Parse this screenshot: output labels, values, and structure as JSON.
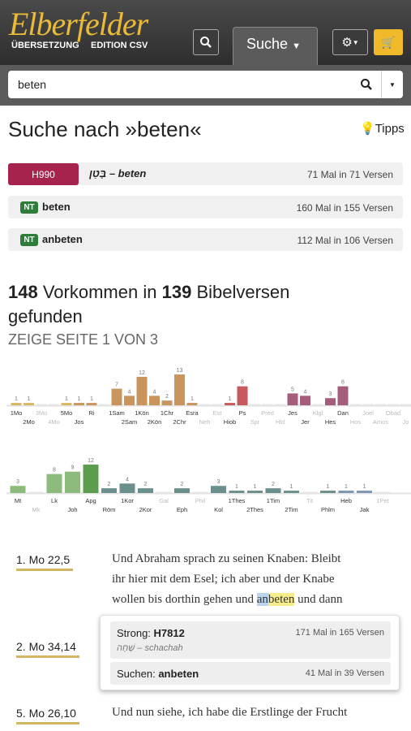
{
  "header": {
    "logo": "Elberfelder",
    "sub1": "ÜBERSETZUNG",
    "sub2": "EDITION CSV",
    "tab": "Suche"
  },
  "search": {
    "query": "beten"
  },
  "heading": {
    "title": "Suche nach »beten«",
    "tips": "Tipps"
  },
  "strongs": [
    {
      "badge": "H990",
      "word": "בָּטַן – beten",
      "count": "71 Mal in 71 Versen"
    },
    {
      "badge": "NT",
      "word": "beten",
      "count": "160 Mal in 155 Versen"
    },
    {
      "badge": "NT",
      "word": "anbeten",
      "count": "112 Mal in 106 Versen"
    }
  ],
  "summary": {
    "occurrences": 148,
    "mid": "Vorkommen in",
    "verses": 139,
    "end": "Bibelversen",
    "end2": "gefunden",
    "page": "ZEIGE SEITE 1 VON 3"
  },
  "chart_data": [
    {
      "type": "bar",
      "ylim": [
        0,
        13
      ],
      "categories": [
        "1Mo",
        "2Mo",
        "3Mo",
        "4Mo",
        "5Mo",
        "Jos",
        "Ri",
        null,
        "1Sam",
        "2Sam",
        "1Kön",
        "2Kön",
        "1Chr",
        "2Chr",
        "Esra",
        "Neh",
        "Est",
        "Hiob",
        "Ps",
        "Spr",
        "Pred",
        "Hld",
        "Jes",
        "Jer",
        "Klgl",
        "Hes",
        "Dan",
        "Hos",
        "Joel",
        "Amos",
        "Obad",
        "Jo"
      ],
      "values": [
        1,
        1,
        0,
        0,
        1,
        1,
        1,
        0,
        7,
        4,
        12,
        4,
        2,
        13,
        1,
        0,
        0,
        1,
        8,
        0,
        0,
        0,
        5,
        4,
        0,
        3,
        8,
        0,
        0,
        0,
        0,
        0
      ],
      "colors": [
        "#d9b863",
        "#d9b863",
        "#d9b863",
        "#d9b863",
        "#d9b863",
        "#c9955d",
        "#c9955d",
        "#c9955d",
        "#c9955d",
        "#c9955d",
        "#c9955d",
        "#c9955d",
        "#c9955d",
        "#c9955d",
        "#c9955d",
        "#c9955d",
        "#c9955d",
        "#c65a5f",
        "#c65a5f",
        "#c65a5f",
        "#c65a5f",
        "#c65a5f",
        "#a55d7c",
        "#a55d7c",
        "#a55d7c",
        "#a55d7c",
        "#a55d7c",
        "#a55d7c",
        "#a55d7c",
        "#a55d7c",
        "#a55d7c",
        "#a55d7c"
      ]
    },
    {
      "type": "bar",
      "ylim": [
        0,
        13
      ],
      "categories": [
        "Mt",
        "Mk",
        "Lk",
        "Joh",
        "Apg",
        "Röm",
        "1Kor",
        "2Kor",
        "Gal",
        "Eph",
        "Phil",
        "Kol",
        "1Thes",
        "2Thes",
        "1Tim",
        "2Tim",
        "Tit",
        "Phlm",
        "Heb",
        "Jak",
        "1Pet"
      ],
      "values": [
        3,
        0,
        8,
        9,
        12,
        2,
        4,
        2,
        0,
        2,
        0,
        3,
        1,
        1,
        2,
        1,
        0,
        1,
        1,
        1,
        0
      ],
      "colors": [
        "#8dbb7d",
        "#8dbb7d",
        "#8dbb7d",
        "#8dbb7d",
        "#5c9c4f",
        "#6b8f8d",
        "#6b8f8d",
        "#6b8f8d",
        "#6b8f8d",
        "#6b8f8d",
        "#6b8f8d",
        "#6b8f8d",
        "#6b8f8d",
        "#6b8f8d",
        "#6b8f8d",
        "#6b8f8d",
        "#6b8f8d",
        "#6b8f8d",
        "#7b97b2",
        "#7b97b2",
        "#7b97b2"
      ]
    }
  ],
  "verses": [
    {
      "ref": "1. Mo 22,5",
      "lines": [
        "Und Abraham sprach zu seinen Knaben: Bleibt",
        "ihr hier mit dem Esel; ich aber und der Knabe"
      ],
      "before": "wollen bis dorthin gehen und ",
      "hl1": "an",
      "hl2": "beten",
      "after": " und dann"
    },
    {
      "ref": "2. Mo 34,14"
    },
    {
      "ref": "5. Mo 26,10",
      "lines": [
        "Und nun siehe, ich habe die Erstlinge der Frucht"
      ]
    }
  ],
  "popup": {
    "strong_label": "Strong:",
    "strong": "H7812",
    "strong_count": "171 Mal in 165 Versen",
    "hebrew": "שָׁחָה – schachah",
    "search_label": "Suchen:",
    "search": "anbeten",
    "search_count": "41 Mal in 39 Versen"
  }
}
